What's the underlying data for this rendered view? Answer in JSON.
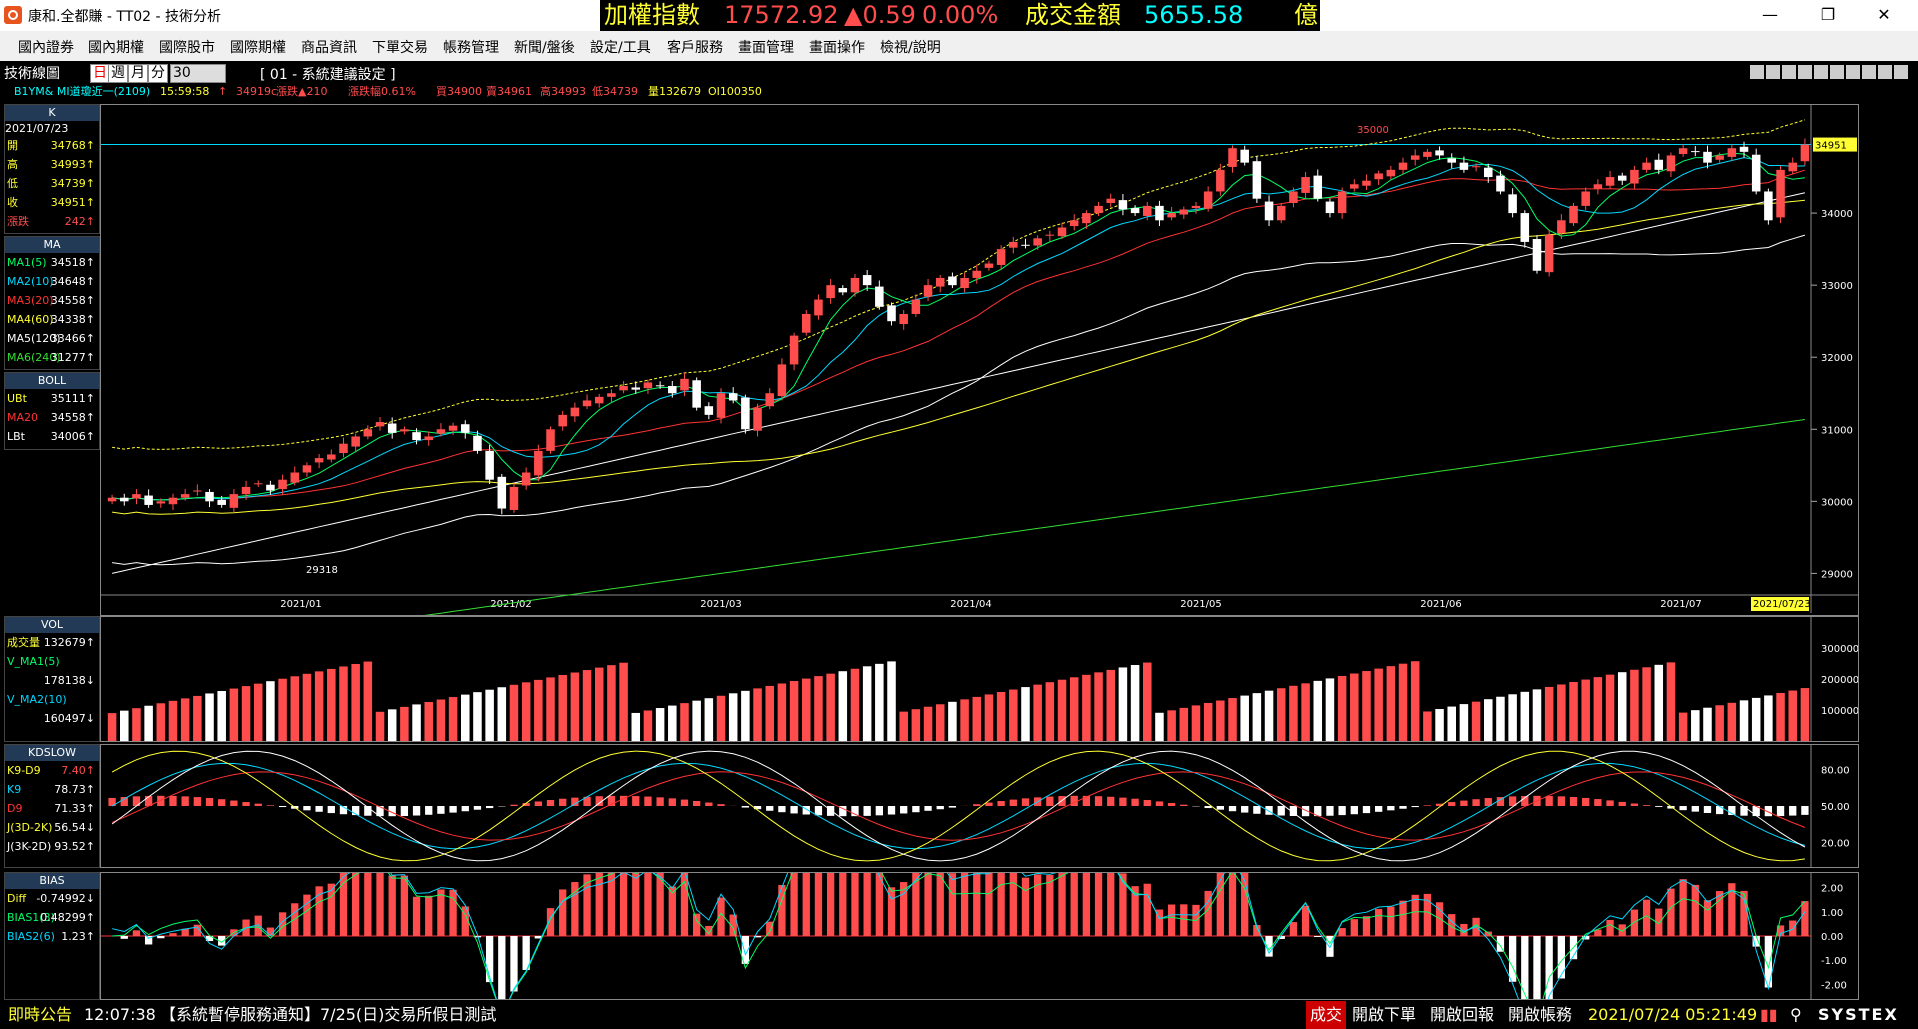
{
  "window": {
    "title": "康和.全都賺 - TT02 - 技術分析"
  },
  "ticker": {
    "index_label": "加權指數",
    "index_value": "17572.92",
    "change": "▲0.59",
    "change_pct": "0.00%",
    "turnover_label": "成交金額",
    "turnover_value": "5655.58",
    "unit": "億"
  },
  "window_controls": {
    "minimize": "—",
    "maximize": "❐",
    "close": "✕"
  },
  "menu": [
    "國內證券",
    "國內期權",
    "國際股市",
    "國際期權",
    "商品資訊",
    "下單交易",
    "帳務管理",
    "新聞/盤後",
    "設定/工具",
    "客戶服務",
    "畫面管理",
    "畫面操作",
    "檢視/說明"
  ],
  "toolbar": {
    "chart_label": "技術線圖",
    "periods": [
      "日",
      "週",
      "月",
      "分"
    ],
    "minute_value": "30",
    "preset": "[ 01 - 系統建議設定 ]"
  },
  "infobar": [
    "B1YM&  MI道瓊近一(2109)",
    "15:59:58",
    "↑",
    "34919c",
    "漲跌▲210",
    "漲跌幅0.61%",
    "買34900",
    "賣34961",
    "高34993",
    "低34739",
    "量132679",
    "OI100350"
  ],
  "colors": {
    "up": "#ff4d4d",
    "down": "#ffffff",
    "ma5": "#00ff66",
    "ma10": "#00d8ff",
    "ma20": "#ff3333",
    "ma60": "#ffff33",
    "ma120": "#ffffff",
    "ma240": "#33dd33",
    "bollband": "#ffff33",
    "bolllow": "#ffffff",
    "k9": "#00d8ff",
    "d9": "#ff3333",
    "j": "#ffff33",
    "j2": "#ffffff"
  },
  "left": {
    "k": {
      "title": "K",
      "date": "2021/07/23",
      "rows": [
        {
          "k": "開",
          "v": "34768↑"
        },
        {
          "k": "高",
          "v": "34993↑"
        },
        {
          "k": "低",
          "v": "34739↑"
        },
        {
          "k": "收",
          "v": "34951↑"
        },
        {
          "k": "漲跌",
          "v": "242↑"
        }
      ]
    },
    "ma": {
      "title": "MA",
      "rows": [
        {
          "k": "MA1(5)",
          "v": "34518↑"
        },
        {
          "k": "MA2(10)",
          "v": "34648↑"
        },
        {
          "k": "MA3(20)",
          "v": "34558↑"
        },
        {
          "k": "MA4(60)",
          "v": "34338↑"
        },
        {
          "k": "MA5(120)",
          "v": "33466↑"
        },
        {
          "k": "MA6(240)",
          "v": "31277↑"
        }
      ]
    },
    "boll": {
      "title": "BOLL",
      "rows": [
        {
          "k": "UBt",
          "v": "35111↑"
        },
        {
          "k": "MA20",
          "v": "34558↑"
        },
        {
          "k": "LBt",
          "v": "34006↑"
        }
      ]
    },
    "vol": {
      "title": "VOL",
      "rows": [
        {
          "k": "成交量",
          "v": "132679↑"
        },
        {
          "k": "V_MA1(5)",
          "v": ""
        },
        {
          "k": "",
          "v": "178138↓"
        },
        {
          "k": "V_MA2(10)",
          "v": ""
        },
        {
          "k": "",
          "v": "160497↓"
        }
      ]
    },
    "kd": {
      "title": "KDSLOW",
      "rows": [
        {
          "k": "K9-D9",
          "v": "7.40↑"
        },
        {
          "k": "K9",
          "v": "78.73↑"
        },
        {
          "k": "D9",
          "v": "71.33↑"
        },
        {
          "k": "J(3D-2K)",
          "v": "56.54↓"
        },
        {
          "k": "J(3K-2D)",
          "v": "93.52↑"
        }
      ]
    },
    "bias": {
      "title": "BIAS",
      "rows": [
        {
          "k": "Diff",
          "v": "-0.74992↓"
        },
        {
          "k": "BIAS1(3)",
          "v": "0.48299↑"
        },
        {
          "k": "BIAS2(6)",
          "v": "1.23↑"
        }
      ]
    }
  },
  "chart_data": [
    {
      "type": "candlestick",
      "title": "",
      "y_ticks": [
        "34000",
        "33000",
        "32000",
        "31000",
        "30000",
        "29000"
      ],
      "ylim": [
        28700,
        35500
      ],
      "x_ticks": [
        "2021/01",
        "2021/02",
        "2021/03",
        "2021/04",
        "2021/05",
        "2021/06",
        "2021/07"
      ],
      "last_date": "2021/07/23",
      "last_price": "34951",
      "annotations": [
        "35000",
        "29318"
      ],
      "close": [
        30050,
        30000,
        30100,
        29950,
        30000,
        30050,
        30100,
        30150,
        30000,
        29950,
        30100,
        30200,
        30250,
        30150,
        30300,
        30400,
        30500,
        30600,
        30650,
        30800,
        30900,
        31000,
        31100,
        30950,
        31000,
        30850,
        30900,
        31000,
        31050,
        30950,
        30700,
        30300,
        29900,
        30200,
        30400,
        30700,
        31000,
        31200,
        31300,
        31400,
        31450,
        31500,
        31600,
        31550,
        31650,
        31600,
        31500,
        31700,
        31300,
        31200,
        31500,
        31400,
        31000,
        31300,
        31500,
        31900,
        32300,
        32600,
        32800,
        33000,
        32900,
        33100,
        33000,
        32700,
        32500,
        32600,
        32800,
        33000,
        33100,
        33000,
        33100,
        33200,
        33300,
        33500,
        33600,
        33550,
        33650,
        33700,
        33800,
        33900,
        34000,
        34100,
        34200,
        34050,
        34000,
        34100,
        33900,
        34000,
        34050,
        34100,
        34300,
        34600,
        34900,
        34700,
        34200,
        33900,
        34100,
        34300,
        34500,
        34200,
        34000,
        34300,
        34400,
        34450,
        34550,
        34600,
        34700,
        34800,
        34850,
        34800,
        34700,
        34600,
        34650,
        34500,
        34300,
        34000,
        33600,
        33200,
        33700,
        33900,
        34100,
        34300,
        34400,
        34500,
        34450,
        34600,
        34700,
        34600,
        34800,
        34900,
        34850,
        34700,
        34800,
        34900,
        34850,
        34300,
        33900,
        34600,
        34700,
        34951
      ]
    },
    {
      "type": "bar",
      "title": "VOL",
      "y_ticks": [
        "300000",
        "200000",
        "100000"
      ]
    },
    {
      "type": "line",
      "title": "KDSLOW",
      "y_ticks": [
        "80.00",
        "50.00",
        "20.00"
      ]
    },
    {
      "type": "bar",
      "title": "BIAS",
      "y_ticks": [
        "2.00",
        "1.00",
        "0.00",
        "-1.00",
        "-2.00"
      ]
    }
  ],
  "status": {
    "label": "即時公告",
    "time": "12:07:38",
    "notice": "【系統暫停服務通知】7/25(日)交易所假日測試",
    "trade": "成交",
    "b1": "開啟下單",
    "b2": "開啟回報",
    "b3": "開啟帳務",
    "datetime": "2021/07/24 05:21:49",
    "brand": "SYSTEX"
  }
}
